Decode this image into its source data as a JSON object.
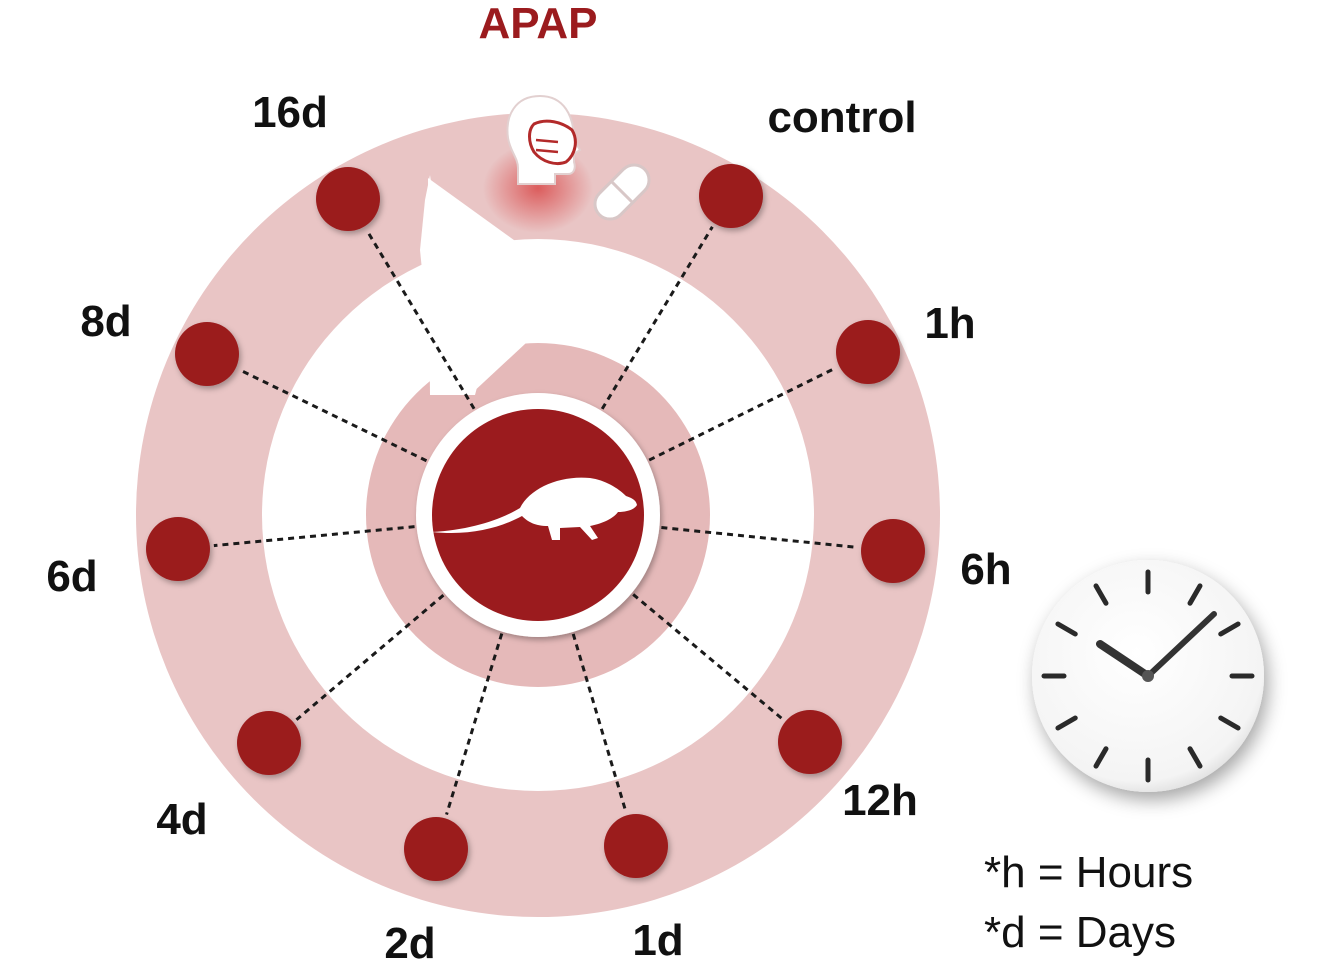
{
  "title": "APAP",
  "colors": {
    "accent": "#9b1b1e",
    "ring": "#e9c5c5",
    "inner_ring": "#e5b9b9",
    "node": "#9b1b1e"
  },
  "timepoints": [
    {
      "label": "control"
    },
    {
      "label": "1h"
    },
    {
      "label": "6h"
    },
    {
      "label": "12h"
    },
    {
      "label": "1d"
    },
    {
      "label": "2d"
    },
    {
      "label": "4d"
    },
    {
      "label": "6d"
    },
    {
      "label": "8d"
    },
    {
      "label": "16d"
    }
  ],
  "icons": [
    "head-with-mask-icon",
    "pill-icon",
    "mouse-icon",
    "clock-icon",
    "cycle-arrow-icon"
  ],
  "legend": {
    "hours": "*h = Hours",
    "days": "*d = Days"
  }
}
